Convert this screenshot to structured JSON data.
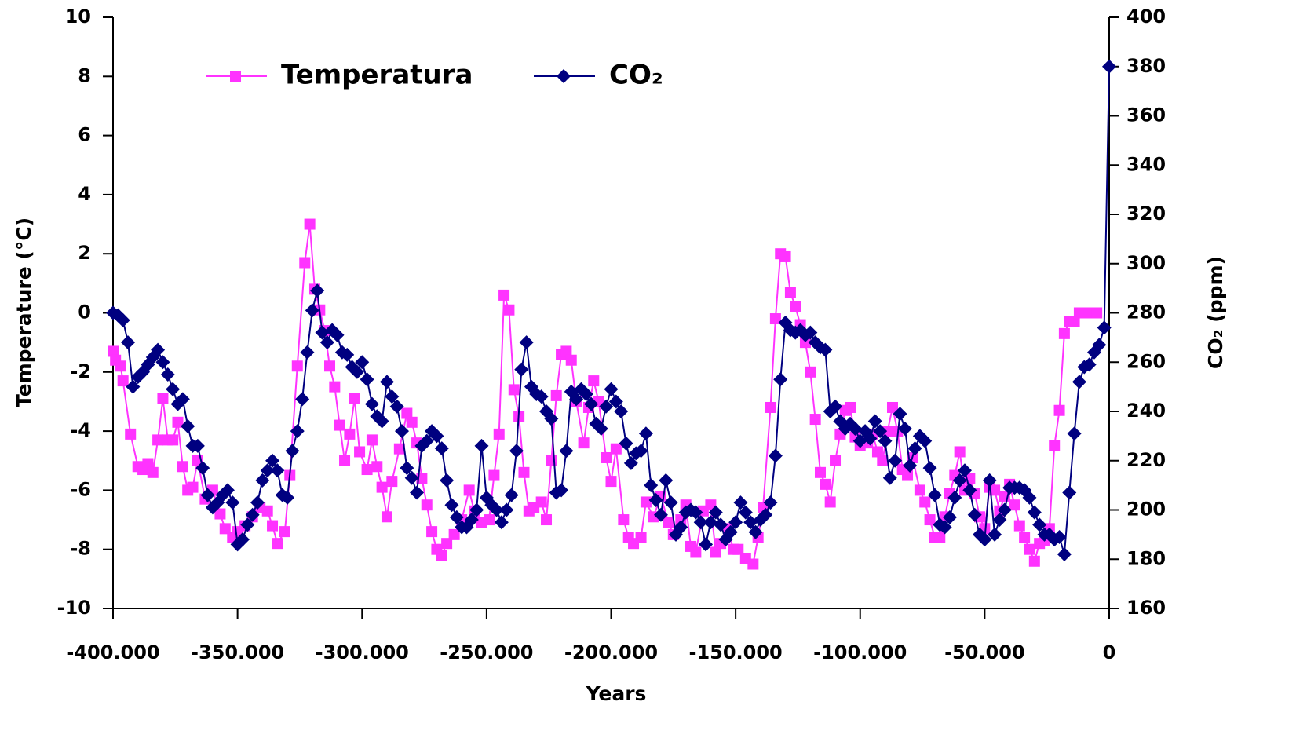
{
  "chart_data": {
    "type": "line",
    "xlabel": "Years",
    "ylabel": "Temperature (°C)",
    "y2label": "CO₂ (ppm)",
    "xlim": [
      -400000,
      0
    ],
    "xticks": [
      {
        "value": -400000,
        "label": "-400.000"
      },
      {
        "value": -350000,
        "label": "-350.000"
      },
      {
        "value": -300000,
        "label": "-300.000"
      },
      {
        "value": -250000,
        "label": "-250.000"
      },
      {
        "value": -200000,
        "label": "-200.000"
      },
      {
        "value": -150000,
        "label": "-150.000"
      },
      {
        "value": -100000,
        "label": "-100.000"
      },
      {
        "value": -50000,
        "label": "-50.000"
      },
      0
    ],
    "ylim": [
      -10,
      10
    ],
    "yticks": [
      -10,
      -8,
      -6,
      -4,
      -2,
      0,
      2,
      4,
      6,
      8,
      10
    ],
    "y2lim": [
      160,
      400
    ],
    "y2ticks": [
      160,
      180,
      200,
      220,
      240,
      260,
      280,
      300,
      320,
      340,
      360,
      380,
      400
    ],
    "legend": "upper left",
    "series": [
      {
        "name": "Temperatura",
        "color": "#ff33ff",
        "marker": "square",
        "x": [
          -400000,
          -399000,
          -397000,
          -396000,
          -393000,
          -390000,
          -388000,
          -386000,
          -384000,
          -382000,
          -380000,
          -378000,
          -376000,
          -374000,
          -372000,
          -370000,
          -368000,
          -366000,
          -363000,
          -360000,
          -357000,
          -355000,
          -352000,
          -350000,
          -347000,
          -344000,
          -341000,
          -338000,
          -336000,
          -334000,
          -331000,
          -329000,
          -326000,
          -323000,
          -321000,
          -319000,
          -317000,
          -315000,
          -313000,
          -311000,
          -309000,
          -307000,
          -305000,
          -303000,
          -301000,
          -298000,
          -296000,
          -294000,
          -292000,
          -290000,
          -288000,
          -285000,
          -282000,
          -280000,
          -278000,
          -276000,
          -274000,
          -272000,
          -270000,
          -268000,
          -266000,
          -263000,
          -260000,
          -257000,
          -255000,
          -252000,
          -249000,
          -247000,
          -245000,
          -243000,
          -241000,
          -239000,
          -237000,
          -235000,
          -233000,
          -231000,
          -228000,
          -226000,
          -224000,
          -222000,
          -220000,
          -218000,
          -216000,
          -214000,
          -211000,
          -209000,
          -207000,
          -205000,
          -202000,
          -200000,
          -198000,
          -195000,
          -193000,
          -191000,
          -188000,
          -186000,
          -183000,
          -180000,
          -177000,
          -175000,
          -172000,
          -170000,
          -168000,
          -166000,
          -163000,
          -160000,
          -158000,
          -156000,
          -153000,
          -151000,
          -149000,
          -146000,
          -143000,
          -141000,
          -139000,
          -136000,
          -134000,
          -132000,
          -130000,
          -128000,
          -126000,
          -124000,
          -122000,
          -120000,
          -118000,
          -116000,
          -114000,
          -112000,
          -110000,
          -108000,
          -106000,
          -104000,
          -102000,
          -100000,
          -97000,
          -95000,
          -93000,
          -91000,
          -89000,
          -87000,
          -85000,
          -83000,
          -81000,
          -79000,
          -76000,
          -74000,
          -72000,
          -70000,
          -68000,
          -66000,
          -64000,
          -62000,
          -60000,
          -58000,
          -56000,
          -54000,
          -52000,
          -50000,
          -48000,
          -46000,
          -44000,
          -42000,
          -40000,
          -38000,
          -36000,
          -34000,
          -32000,
          -30000,
          -28000,
          -26000,
          -24000,
          -22000,
          -20000,
          -18000,
          -16000,
          -14000,
          -12000,
          -10000,
          -8000,
          -5000
        ],
        "values": [
          -1.3,
          -1.6,
          -1.8,
          -2.3,
          -4.1,
          -5.2,
          -5.3,
          -5.1,
          -5.4,
          -4.3,
          -2.9,
          -4.3,
          -4.3,
          -3.7,
          -5.2,
          -6.0,
          -5.9,
          -5.0,
          -6.3,
          -6.0,
          -6.8,
          -7.3,
          -7.6,
          -7.4,
          -7.2,
          -6.9,
          -6.6,
          -6.7,
          -7.2,
          -7.8,
          -7.4,
          -5.5,
          -1.8,
          1.7,
          3.0,
          0.8,
          0.1,
          -0.6,
          -1.8,
          -2.5,
          -3.8,
          -5.0,
          -4.1,
          -2.9,
          -4.7,
          -5.3,
          -4.3,
          -5.2,
          -5.9,
          -6.9,
          -5.7,
          -4.6,
          -3.4,
          -3.7,
          -4.4,
          -5.6,
          -6.5,
          -7.4,
          -8.0,
          -8.2,
          -7.8,
          -7.5,
          -7.0,
          -6.0,
          -6.7,
          -7.1,
          -7.0,
          -5.5,
          -4.1,
          0.6,
          0.1,
          -2.6,
          -3.5,
          -5.4,
          -6.7,
          -6.6,
          -6.4,
          -7.0,
          -5.0,
          -2.8,
          -1.4,
          -1.3,
          -1.6,
          -3.0,
          -4.4,
          -3.2,
          -2.3,
          -3.0,
          -4.9,
          -5.7,
          -4.6,
          -7.0,
          -7.6,
          -7.8,
          -7.6,
          -6.4,
          -6.9,
          -6.2,
          -7.1,
          -7.5,
          -7.0,
          -6.5,
          -7.9,
          -8.1,
          -6.7,
          -6.5,
          -8.1,
          -7.8,
          -7.3,
          -8.0,
          -8.0,
          -8.3,
          -8.5,
          -7.6,
          -6.6,
          -3.2,
          -0.2,
          2.0,
          1.9,
          0.7,
          0.2,
          -0.4,
          -1.0,
          -2.0,
          -3.6,
          -5.4,
          -5.8,
          -6.4,
          -5.0,
          -4.1,
          -3.3,
          -3.2,
          -4.2,
          -4.5,
          -4.4,
          -4.1,
          -4.7,
          -5.0,
          -4.0,
          -3.2,
          -4.0,
          -5.3,
          -5.5,
          -4.9,
          -6.0,
          -6.4,
          -7.0,
          -7.6,
          -7.6,
          -6.9,
          -6.1,
          -5.5,
          -4.7,
          -6.0,
          -5.6,
          -6.1,
          -6.9,
          -7.3,
          -5.9,
          -6.0,
          -6.7,
          -6.2,
          -5.8,
          -6.5,
          -7.2,
          -7.6,
          -8.0,
          -8.4,
          -7.8,
          -7.7,
          -7.3,
          -4.5,
          -3.3,
          -0.7,
          -0.3,
          -0.3,
          0.0,
          0.0,
          0.0,
          0.0
        ]
      },
      {
        "name": "CO₂",
        "color": "#000080",
        "marker": "diamond",
        "axis": "y2",
        "x": [
          -400000,
          -398000,
          -396000,
          -394000,
          -392000,
          -390000,
          -388000,
          -386000,
          -384000,
          -382000,
          -380000,
          -378000,
          -376000,
          -374000,
          -372000,
          -370000,
          -368000,
          -366000,
          -364000,
          -362000,
          -360000,
          -358000,
          -356000,
          -354000,
          -352000,
          -350000,
          -348000,
          -346000,
          -344000,
          -342000,
          -340000,
          -338000,
          -336000,
          -334000,
          -332000,
          -330000,
          -328000,
          -326000,
          -324000,
          -322000,
          -320000,
          -318000,
          -316000,
          -314000,
          -312000,
          -310000,
          -308000,
          -306000,
          -304000,
          -302000,
          -300000,
          -298000,
          -296000,
          -294000,
          -292000,
          -290000,
          -288000,
          -286000,
          -284000,
          -282000,
          -280000,
          -278000,
          -276000,
          -274000,
          -272000,
          -270000,
          -268000,
          -266000,
          -264000,
          -262000,
          -260000,
          -258000,
          -256000,
          -254000,
          -252000,
          -250000,
          -248000,
          -246000,
          -244000,
          -242000,
          -240000,
          -238000,
          -236000,
          -234000,
          -232000,
          -230000,
          -228000,
          -226000,
          -224000,
          -222000,
          -220000,
          -218000,
          -216000,
          -214000,
          -212000,
          -210000,
          -208000,
          -206000,
          -204000,
          -202000,
          -200000,
          -198000,
          -196000,
          -194000,
          -192000,
          -190000,
          -188000,
          -186000,
          -184000,
          -182000,
          -180000,
          -178000,
          -176000,
          -174000,
          -172000,
          -170000,
          -168000,
          -166000,
          -164000,
          -162000,
          -160000,
          -158000,
          -156000,
          -154000,
          -152000,
          -150000,
          -148000,
          -146000,
          -144000,
          -142000,
          -140000,
          -138000,
          -136000,
          -134000,
          -132000,
          -130000,
          -128000,
          -126000,
          -124000,
          -122000,
          -120000,
          -118000,
          -116000,
          -114000,
          -112000,
          -110000,
          -108000,
          -106000,
          -104000,
          -102000,
          -100000,
          -98000,
          -96000,
          -94000,
          -92000,
          -90000,
          -88000,
          -86000,
          -84000,
          -82000,
          -80000,
          -78000,
          -76000,
          -74000,
          -72000,
          -70000,
          -68000,
          -66000,
          -64000,
          -62000,
          -60000,
          -58000,
          -56000,
          -54000,
          -52000,
          -50000,
          -48000,
          -46000,
          -44000,
          -42000,
          -40000,
          -38000,
          -36000,
          -34000,
          -32000,
          -30000,
          -28000,
          -26000,
          -24000,
          -22000,
          -20000,
          -18000,
          -16000,
          -14000,
          -12000,
          -10000,
          -8000,
          -6000,
          -4000,
          -2000,
          0
        ],
        "values": [
          280,
          279,
          277,
          268,
          250,
          254,
          256,
          259,
          262,
          265,
          260,
          255,
          249,
          243,
          245,
          234,
          226,
          226,
          217,
          206,
          201,
          203,
          206,
          208,
          203,
          186,
          188,
          194,
          198,
          203,
          212,
          216,
          220,
          216,
          206,
          205,
          224,
          232,
          245,
          264,
          281,
          289,
          272,
          268,
          273,
          271,
          264,
          263,
          258,
          256,
          260,
          253,
          243,
          238,
          236,
          252,
          246,
          242,
          232,
          217,
          213,
          207,
          226,
          228,
          232,
          230,
          225,
          212,
          202,
          197,
          193,
          193,
          196,
          200,
          226,
          205,
          202,
          200,
          195,
          200,
          206,
          224,
          257,
          268,
          250,
          247,
          246,
          240,
          237,
          207,
          208,
          224,
          248,
          245,
          249,
          247,
          243,
          235,
          233,
          242,
          249,
          244,
          240,
          227,
          219,
          223,
          224,
          231,
          210,
          204,
          198,
          212,
          203,
          190,
          193,
          199,
          200,
          199,
          195,
          186,
          195,
          199,
          194,
          188,
          191,
          195,
          203,
          199,
          195,
          191,
          196,
          198,
          203,
          222,
          253,
          276,
          273,
          272,
          273,
          271,
          272,
          268,
          266,
          265,
          240,
          242,
          236,
          233,
          235,
          233,
          228,
          232,
          229,
          236,
          232,
          228,
          213,
          220,
          239,
          233,
          218,
          225,
          230,
          228,
          217,
          206,
          194,
          193,
          197,
          205,
          212,
          216,
          208,
          198,
          190,
          188,
          212,
          190,
          196,
          200,
          209,
          209,
          209,
          208,
          205,
          199,
          194,
          190,
          190,
          188,
          189,
          182,
          207,
          231,
          252,
          258,
          259,
          264,
          267,
          274,
          380
        ]
      }
    ]
  }
}
